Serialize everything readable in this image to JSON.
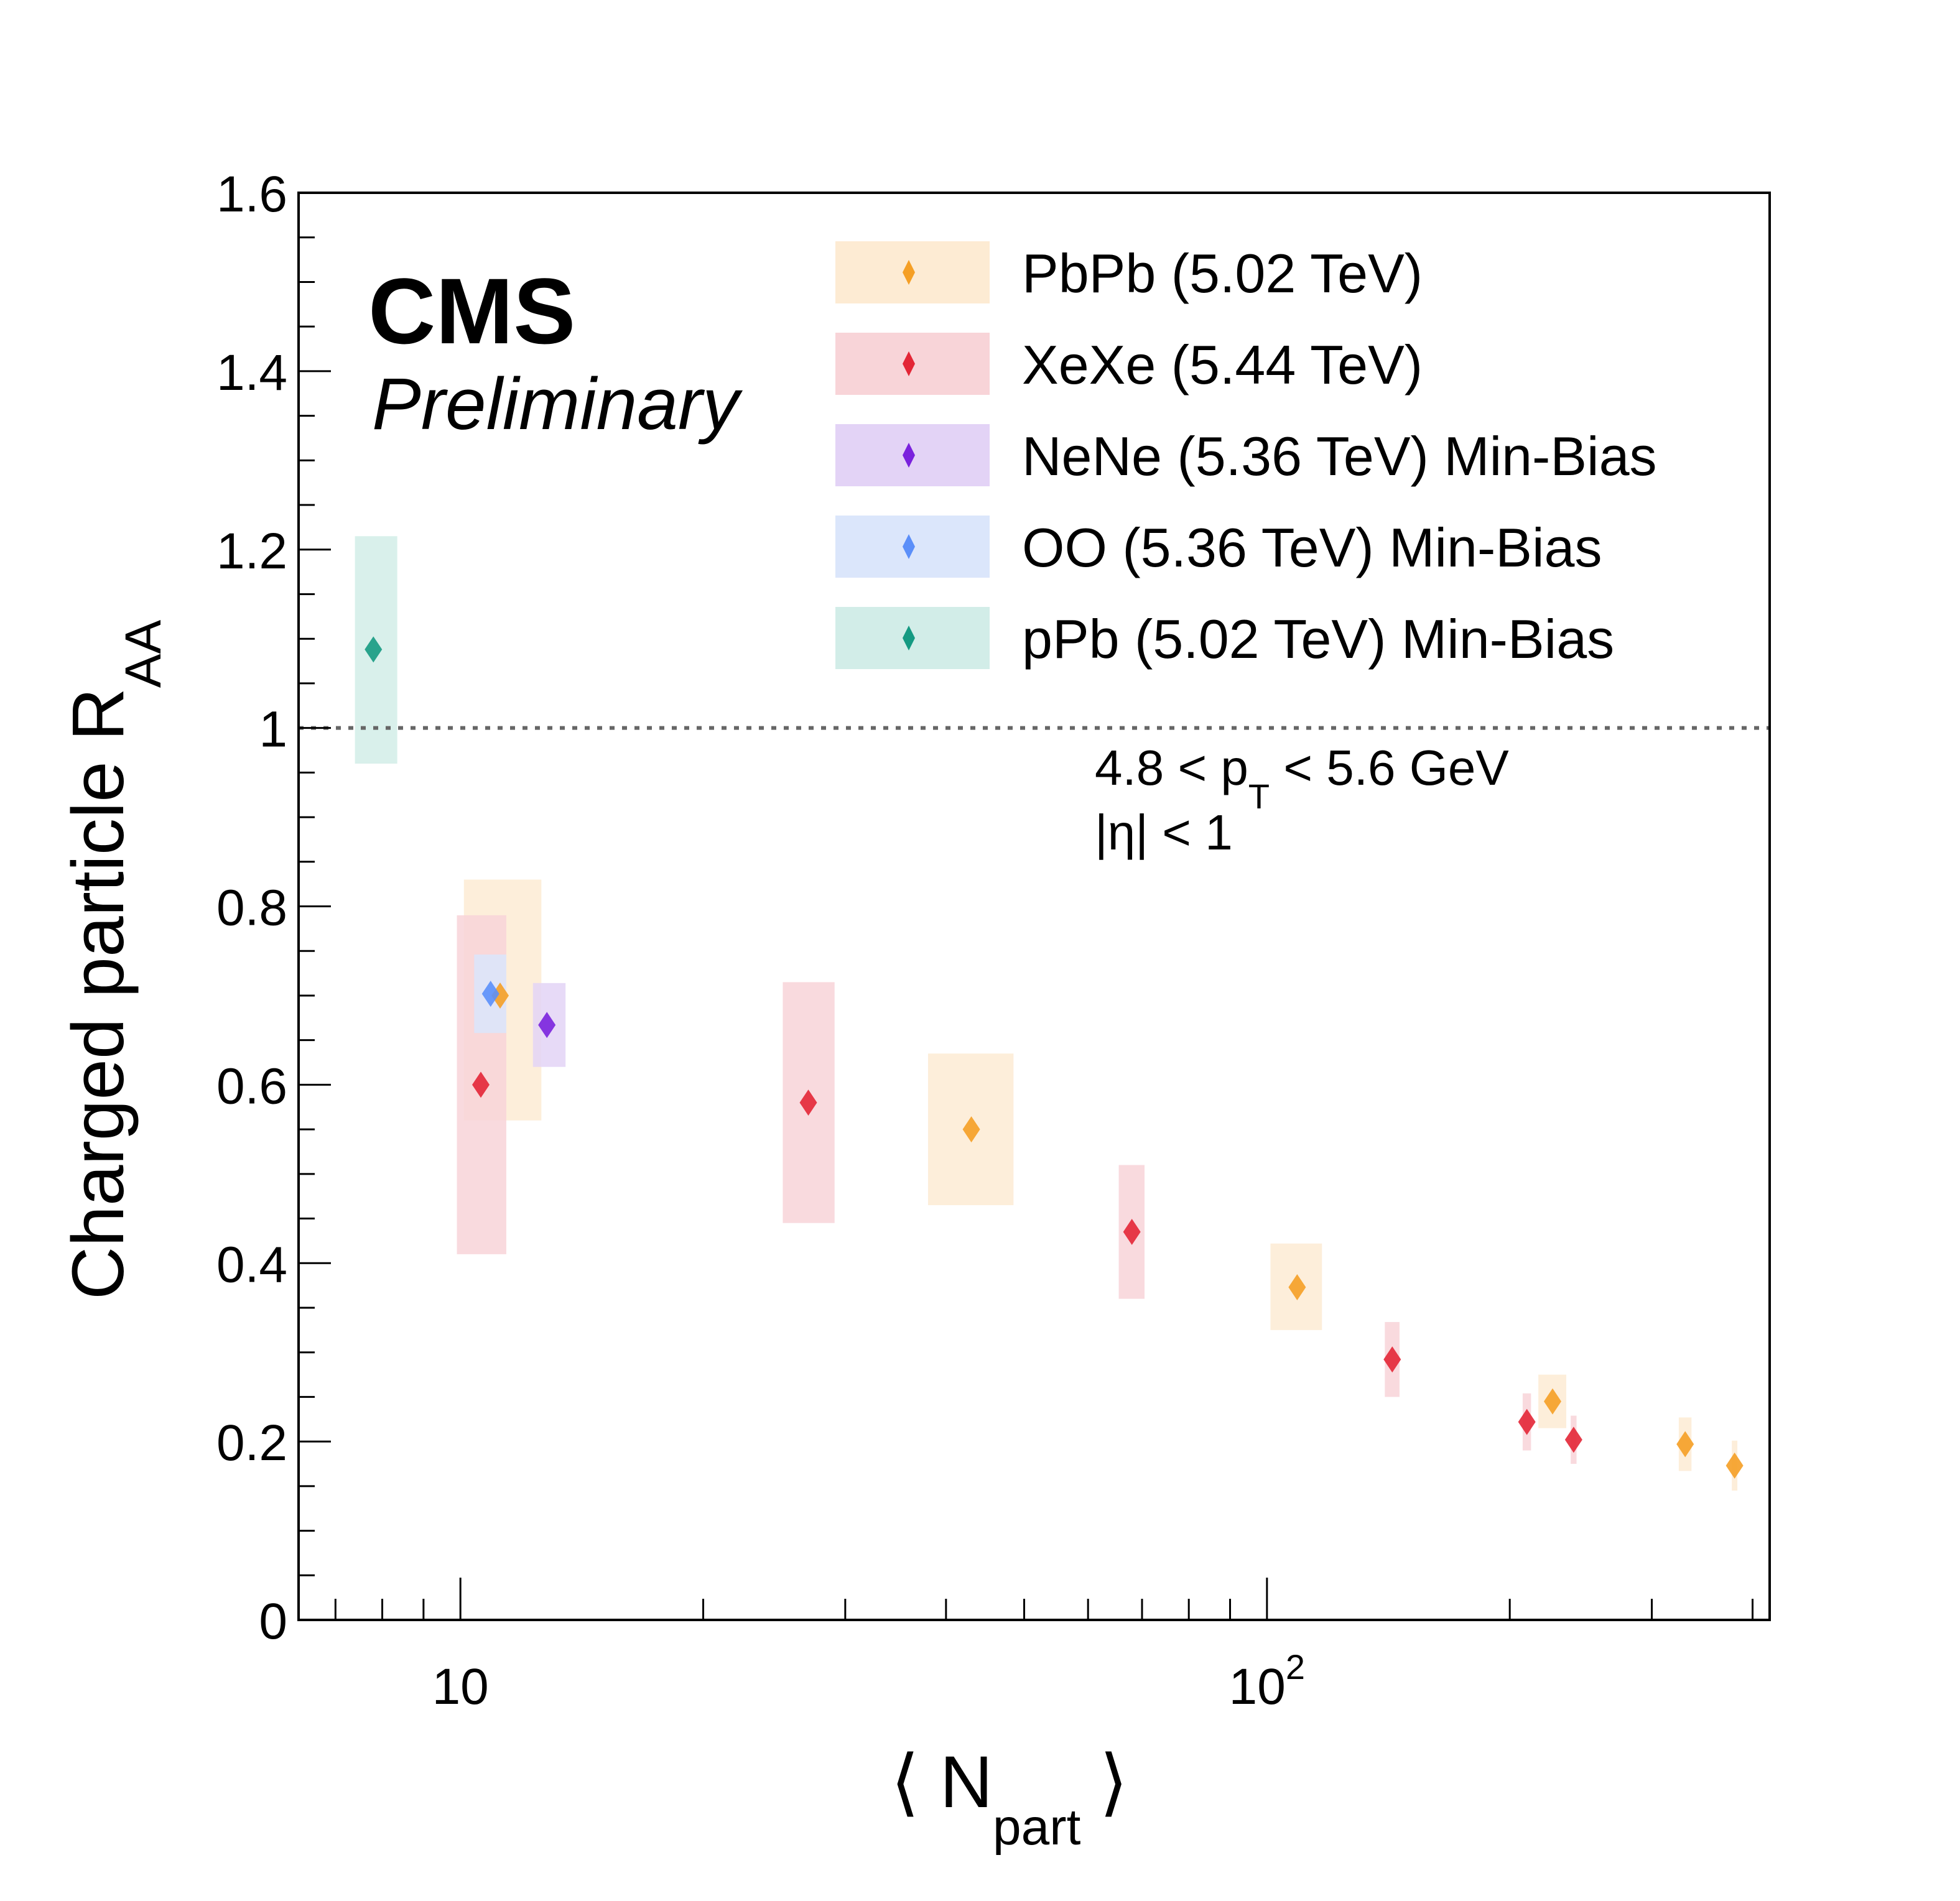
{
  "chart_data": {
    "type": "scatter",
    "title": "",
    "experiment_label": "CMS",
    "status_label": "Preliminary",
    "xlabel": {
      "open": "⟨ N",
      "sub": "part",
      "close": "⟩"
    },
    "ylabel": {
      "main": "Charged particle R",
      "sub": "AA"
    },
    "xscale": "log",
    "xlim": [
      6.3,
      420
    ],
    "ylim": [
      0,
      1.6
    ],
    "x_tick_labels": [
      {
        "value": 10,
        "base": "10",
        "exp": ""
      },
      {
        "value": 100,
        "base": "10",
        "exp": "2"
      }
    ],
    "y_ticks": [
      0,
      0.2,
      0.4,
      0.6,
      0.8,
      1,
      1.2,
      1.4,
      1.6
    ],
    "y_tick_labels": [
      "0",
      "0.2",
      "0.4",
      "0.6",
      "0.8",
      "1",
      "1.2",
      "1.4",
      "1.6"
    ],
    "reference_line": {
      "y": 1.0,
      "style": "dotted",
      "color": "#666666"
    },
    "annotations": [
      {
        "text": "4.8 < p",
        "sub": "T",
        "tail": " < 5.6 GeV"
      },
      {
        "text": "|η| < 1"
      }
    ],
    "legend_position": "top-right",
    "series": [
      {
        "name": "PbPb (5.02 TeV)",
        "marker_color": "#f59f25",
        "box_color": "#fdebd3",
        "points": [
          {
            "x": 11.2,
            "y": 0.7,
            "sys_low": 0.56,
            "sys_high": 0.83,
            "box_x_low": 10.1,
            "box_x_high": 12.6
          },
          {
            "x": 43,
            "y": 0.55,
            "sys_low": 0.465,
            "sys_high": 0.635,
            "box_x_low": 38,
            "box_x_high": 48.5
          },
          {
            "x": 109,
            "y": 0.373,
            "sys_low": 0.325,
            "sys_high": 0.422,
            "box_x_low": 101,
            "box_x_high": 117
          },
          {
            "x": 226,
            "y": 0.245,
            "sys_low": 0.215,
            "sys_high": 0.275,
            "box_x_low": 217,
            "box_x_high": 235
          },
          {
            "x": 330,
            "y": 0.197,
            "sys_low": 0.167,
            "sys_high": 0.227,
            "box_x_low": 324,
            "box_x_high": 336
          },
          {
            "x": 380,
            "y": 0.173,
            "sys_low": 0.145,
            "sys_high": 0.201,
            "box_x_low": 377,
            "box_x_high": 383
          }
        ]
      },
      {
        "name": "XeXe (5.44 TeV)",
        "marker_color": "#e32636",
        "box_color": "#f8d4d8",
        "points": [
          {
            "x": 10.6,
            "y": 0.6,
            "sys_low": 0.41,
            "sys_high": 0.79,
            "box_x_low": 9.9,
            "box_x_high": 11.4
          },
          {
            "x": 27,
            "y": 0.58,
            "sys_low": 0.445,
            "sys_high": 0.715,
            "box_x_low": 25.1,
            "box_x_high": 29.1
          },
          {
            "x": 68,
            "y": 0.435,
            "sys_low": 0.36,
            "sys_high": 0.51,
            "box_x_low": 65.5,
            "box_x_high": 70.5
          },
          {
            "x": 143,
            "y": 0.292,
            "sys_low": 0.25,
            "sys_high": 0.334,
            "box_x_low": 140,
            "box_x_high": 146
          },
          {
            "x": 210,
            "y": 0.222,
            "sys_low": 0.19,
            "sys_high": 0.254,
            "box_x_low": 207.5,
            "box_x_high": 212.5
          },
          {
            "x": 240,
            "y": 0.202,
            "sys_low": 0.175,
            "sys_high": 0.229,
            "box_x_low": 238,
            "box_x_high": 242
          }
        ]
      },
      {
        "name": "NeNe (5.36 TeV) Min-Bias",
        "marker_color": "#7a22dd",
        "box_color": "#e3d3f6",
        "points": [
          {
            "x": 12.8,
            "y": 0.667,
            "sys_low": 0.62,
            "sys_high": 0.714,
            "box_x_low": 12.3,
            "box_x_high": 13.5
          }
        ]
      },
      {
        "name": "OO (5.36 TeV) Min-Bias",
        "marker_color": "#5b8ff9",
        "box_color": "#dbe6fb",
        "points": [
          {
            "x": 10.9,
            "y": 0.702,
            "sys_low": 0.658,
            "sys_high": 0.746,
            "box_x_low": 10.4,
            "box_x_high": 11.4
          }
        ]
      },
      {
        "name": "pPb (5.02 TeV) Min-Bias",
        "marker_color": "#159a82",
        "box_color": "#d2ede8",
        "points": [
          {
            "x": 7.8,
            "y": 1.088,
            "sys_low": 0.96,
            "sys_high": 1.215,
            "box_x_low": 7.4,
            "box_x_high": 8.35
          }
        ]
      }
    ]
  }
}
